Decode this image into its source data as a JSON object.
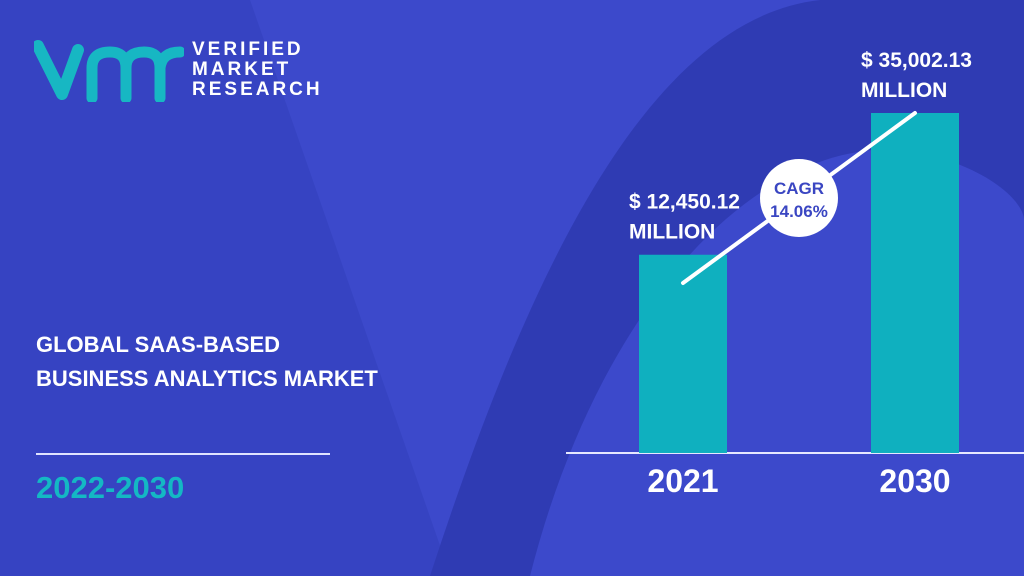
{
  "brand": {
    "logo_text": "VMR",
    "name_lines": [
      "VERIFIED",
      "MARKET",
      "RESEARCH"
    ]
  },
  "title_lines": [
    "GLOBAL SAAS-BASED",
    "BUSINESS ANALYTICS MARKET"
  ],
  "period": "2022-2030",
  "colors": {
    "background": "#3c49cb",
    "accent": "#14b8c4",
    "bar": "#0fb0bf",
    "text": "#ffffff"
  },
  "chart_data": {
    "type": "bar",
    "categories": [
      "2021",
      "2030"
    ],
    "values": [
      12450.12,
      35002.13
    ],
    "data_labels": [
      [
        "$ 12,450.12",
        "MILLION"
      ],
      [
        "$ 35,002.13",
        "MILLION"
      ]
    ],
    "unit": "USD Million",
    "annotation": {
      "line1": "CAGR",
      "line2": "14.06%"
    },
    "grid": false
  }
}
